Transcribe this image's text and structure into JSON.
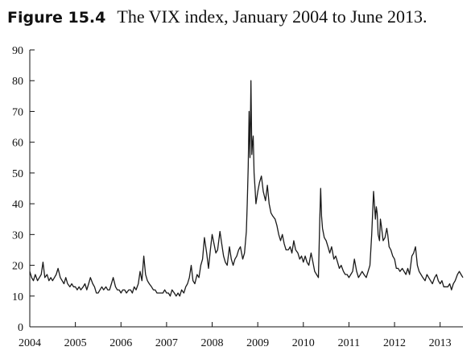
{
  "caption": {
    "label": "Figure 15.4",
    "title": "The VIX index, January 2004 to June 2013."
  },
  "colors": {
    "line": "#1a1a1a",
    "axis": "#111111",
    "background": "#ffffff"
  },
  "chart_data": {
    "type": "line",
    "title": "",
    "xlabel": "",
    "ylabel": "",
    "xlim": [
      2004.0,
      2013.5
    ],
    "ylim": [
      0,
      90
    ],
    "y_ticks": [
      0,
      10,
      20,
      30,
      40,
      50,
      60,
      70,
      80,
      90
    ],
    "x_ticks": [
      2004,
      2005,
      2006,
      2007,
      2008,
      2009,
      2010,
      2011,
      2012,
      2013
    ],
    "x_tick_labels": [
      "2004",
      "2005",
      "2006",
      "2007",
      "2008",
      "2009",
      "2010",
      "2011",
      "2012",
      "2013"
    ],
    "grid": false,
    "legend": "none",
    "series": [
      {
        "x": [
          2004.0,
          2004.04,
          2004.08,
          2004.12,
          2004.17,
          2004.21,
          2004.25,
          2004.29,
          2004.33,
          2004.38,
          2004.42,
          2004.46,
          2004.5,
          2004.54,
          2004.58,
          2004.62,
          2004.67,
          2004.71,
          2004.75,
          2004.79,
          2004.83,
          2004.88,
          2004.92,
          2004.96,
          2005.0,
          2005.04,
          2005.08,
          2005.12,
          2005.17,
          2005.21,
          2005.25,
          2005.29,
          2005.33,
          2005.38,
          2005.42,
          2005.46,
          2005.5,
          2005.54,
          2005.58,
          2005.62,
          2005.67,
          2005.71,
          2005.75,
          2005.79,
          2005.83,
          2005.88,
          2005.92,
          2005.96,
          2006.0,
          2006.04,
          2006.08,
          2006.12,
          2006.17,
          2006.21,
          2006.25,
          2006.29,
          2006.33,
          2006.38,
          2006.42,
          2006.46,
          2006.5,
          2006.54,
          2006.58,
          2006.62,
          2006.67,
          2006.71,
          2006.75,
          2006.79,
          2006.83,
          2006.88,
          2006.92,
          2006.96,
          2007.0,
          2007.04,
          2007.08,
          2007.12,
          2007.17,
          2007.21,
          2007.25,
          2007.29,
          2007.33,
          2007.38,
          2007.42,
          2007.46,
          2007.5,
          2007.54,
          2007.58,
          2007.62,
          2007.67,
          2007.71,
          2007.75,
          2007.79,
          2007.83,
          2007.88,
          2007.92,
          2007.96,
          2008.0,
          2008.04,
          2008.08,
          2008.12,
          2008.17,
          2008.21,
          2008.25,
          2008.29,
          2008.33,
          2008.38,
          2008.42,
          2008.46,
          2008.5,
          2008.54,
          2008.58,
          2008.62,
          2008.67,
          2008.71,
          2008.75,
          2008.77,
          2008.79,
          2008.81,
          2008.83,
          2008.85,
          2008.87,
          2008.88,
          2008.9,
          2008.92,
          2008.94,
          2008.96,
          2009.0,
          2009.04,
          2009.08,
          2009.12,
          2009.17,
          2009.21,
          2009.25,
          2009.29,
          2009.33,
          2009.38,
          2009.42,
          2009.46,
          2009.5,
          2009.54,
          2009.58,
          2009.62,
          2009.67,
          2009.71,
          2009.75,
          2009.79,
          2009.83,
          2009.88,
          2009.92,
          2009.96,
          2010.0,
          2010.04,
          2010.08,
          2010.12,
          2010.17,
          2010.21,
          2010.25,
          2010.29,
          2010.33,
          2010.36,
          2010.38,
          2010.4,
          2010.42,
          2010.46,
          2010.5,
          2010.54,
          2010.58,
          2010.62,
          2010.67,
          2010.71,
          2010.75,
          2010.79,
          2010.83,
          2010.88,
          2010.92,
          2010.96,
          2011.0,
          2011.04,
          2011.08,
          2011.12,
          2011.17,
          2011.21,
          2011.25,
          2011.29,
          2011.33,
          2011.38,
          2011.42,
          2011.46,
          2011.5,
          2011.54,
          2011.58,
          2011.6,
          2011.62,
          2011.64,
          2011.67,
          2011.69,
          2011.71,
          2011.75,
          2011.79,
          2011.83,
          2011.85,
          2011.88,
          2011.92,
          2011.96,
          2012.0,
          2012.04,
          2012.08,
          2012.12,
          2012.17,
          2012.21,
          2012.25,
          2012.29,
          2012.33,
          2012.38,
          2012.42,
          2012.46,
          2012.5,
          2012.54,
          2012.58,
          2012.62,
          2012.67,
          2012.71,
          2012.75,
          2012.79,
          2012.83,
          2012.88,
          2012.92,
          2012.96,
          2013.0,
          2013.04,
          2013.08,
          2013.12,
          2013.17,
          2013.21,
          2013.25,
          2013.29,
          2013.33,
          2013.38,
          2013.42,
          2013.46,
          2013.5
        ],
        "values": [
          18,
          16,
          15,
          17,
          15,
          16,
          17,
          21,
          16,
          17,
          15,
          16,
          15,
          16,
          17,
          19,
          16,
          15,
          14,
          16,
          14,
          13,
          14,
          13,
          13,
          12,
          13,
          12,
          13,
          14,
          12,
          14,
          16,
          14,
          13,
          11,
          11,
          12,
          13,
          12,
          13,
          12,
          12,
          14,
          16,
          13,
          12,
          12,
          11,
          12,
          12,
          11,
          12,
          12,
          11,
          13,
          12,
          14,
          18,
          15,
          23,
          17,
          15,
          14,
          13,
          12,
          12,
          11,
          11,
          11,
          11,
          12,
          11,
          11,
          10,
          12,
          11,
          10,
          11,
          10,
          12,
          11,
          13,
          14,
          16,
          20,
          15,
          14,
          17,
          16,
          20,
          22,
          29,
          24,
          19,
          25,
          30,
          27,
          24,
          25,
          31,
          27,
          23,
          21,
          20,
          26,
          22,
          20,
          22,
          23,
          25,
          26,
          22,
          24,
          31,
          40,
          52,
          70,
          55,
          80,
          56,
          59,
          62,
          50,
          45,
          40,
          44,
          47,
          49,
          44,
          41,
          46,
          40,
          37,
          36,
          35,
          33,
          30,
          28,
          30,
          27,
          25,
          25,
          26,
          24,
          28,
          25,
          24,
          22,
          23,
          21,
          23,
          21,
          20,
          24,
          21,
          18,
          17,
          16,
          35,
          45,
          36,
          32,
          29,
          28,
          26,
          24,
          26,
          22,
          23,
          21,
          19,
          20,
          18,
          17,
          17,
          16,
          17,
          18,
          22,
          18,
          16,
          17,
          18,
          17,
          16,
          18,
          20,
          30,
          44,
          35,
          39,
          37,
          30,
          28,
          35,
          33,
          28,
          29,
          32,
          30,
          26,
          25,
          23,
          22,
          19,
          19,
          18,
          19,
          18,
          17,
          19,
          17,
          23,
          24,
          26,
          20,
          18,
          17,
          16,
          15,
          17,
          16,
          15,
          14,
          16,
          17,
          15,
          14,
          15,
          13,
          13,
          13,
          14,
          12,
          14,
          15,
          17,
          18,
          17,
          16
        ]
      }
    ]
  }
}
